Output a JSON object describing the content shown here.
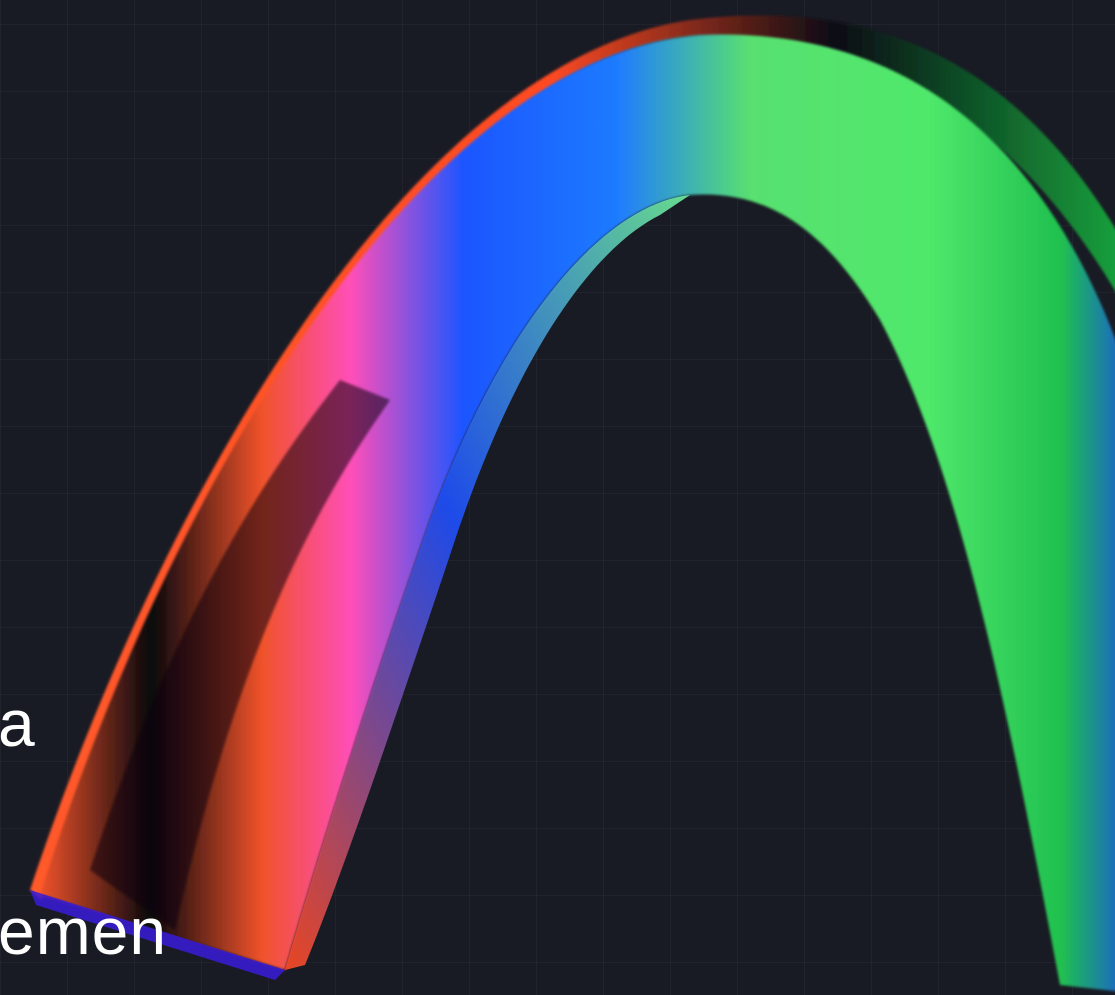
{
  "hero": {
    "text_fragment_1": "a",
    "text_fragment_2": "emen"
  },
  "colors": {
    "background": "#191b24",
    "grid_line": "rgba(255,255,255,0.035)",
    "arch_orange": "#f0522a",
    "arch_blue": "#1f55ff",
    "arch_magenta": "#ff4fb8",
    "arch_green": "#4fe86b",
    "arch_dark": "#08070d"
  },
  "image": {
    "name": "gradient-arch-illustration"
  }
}
